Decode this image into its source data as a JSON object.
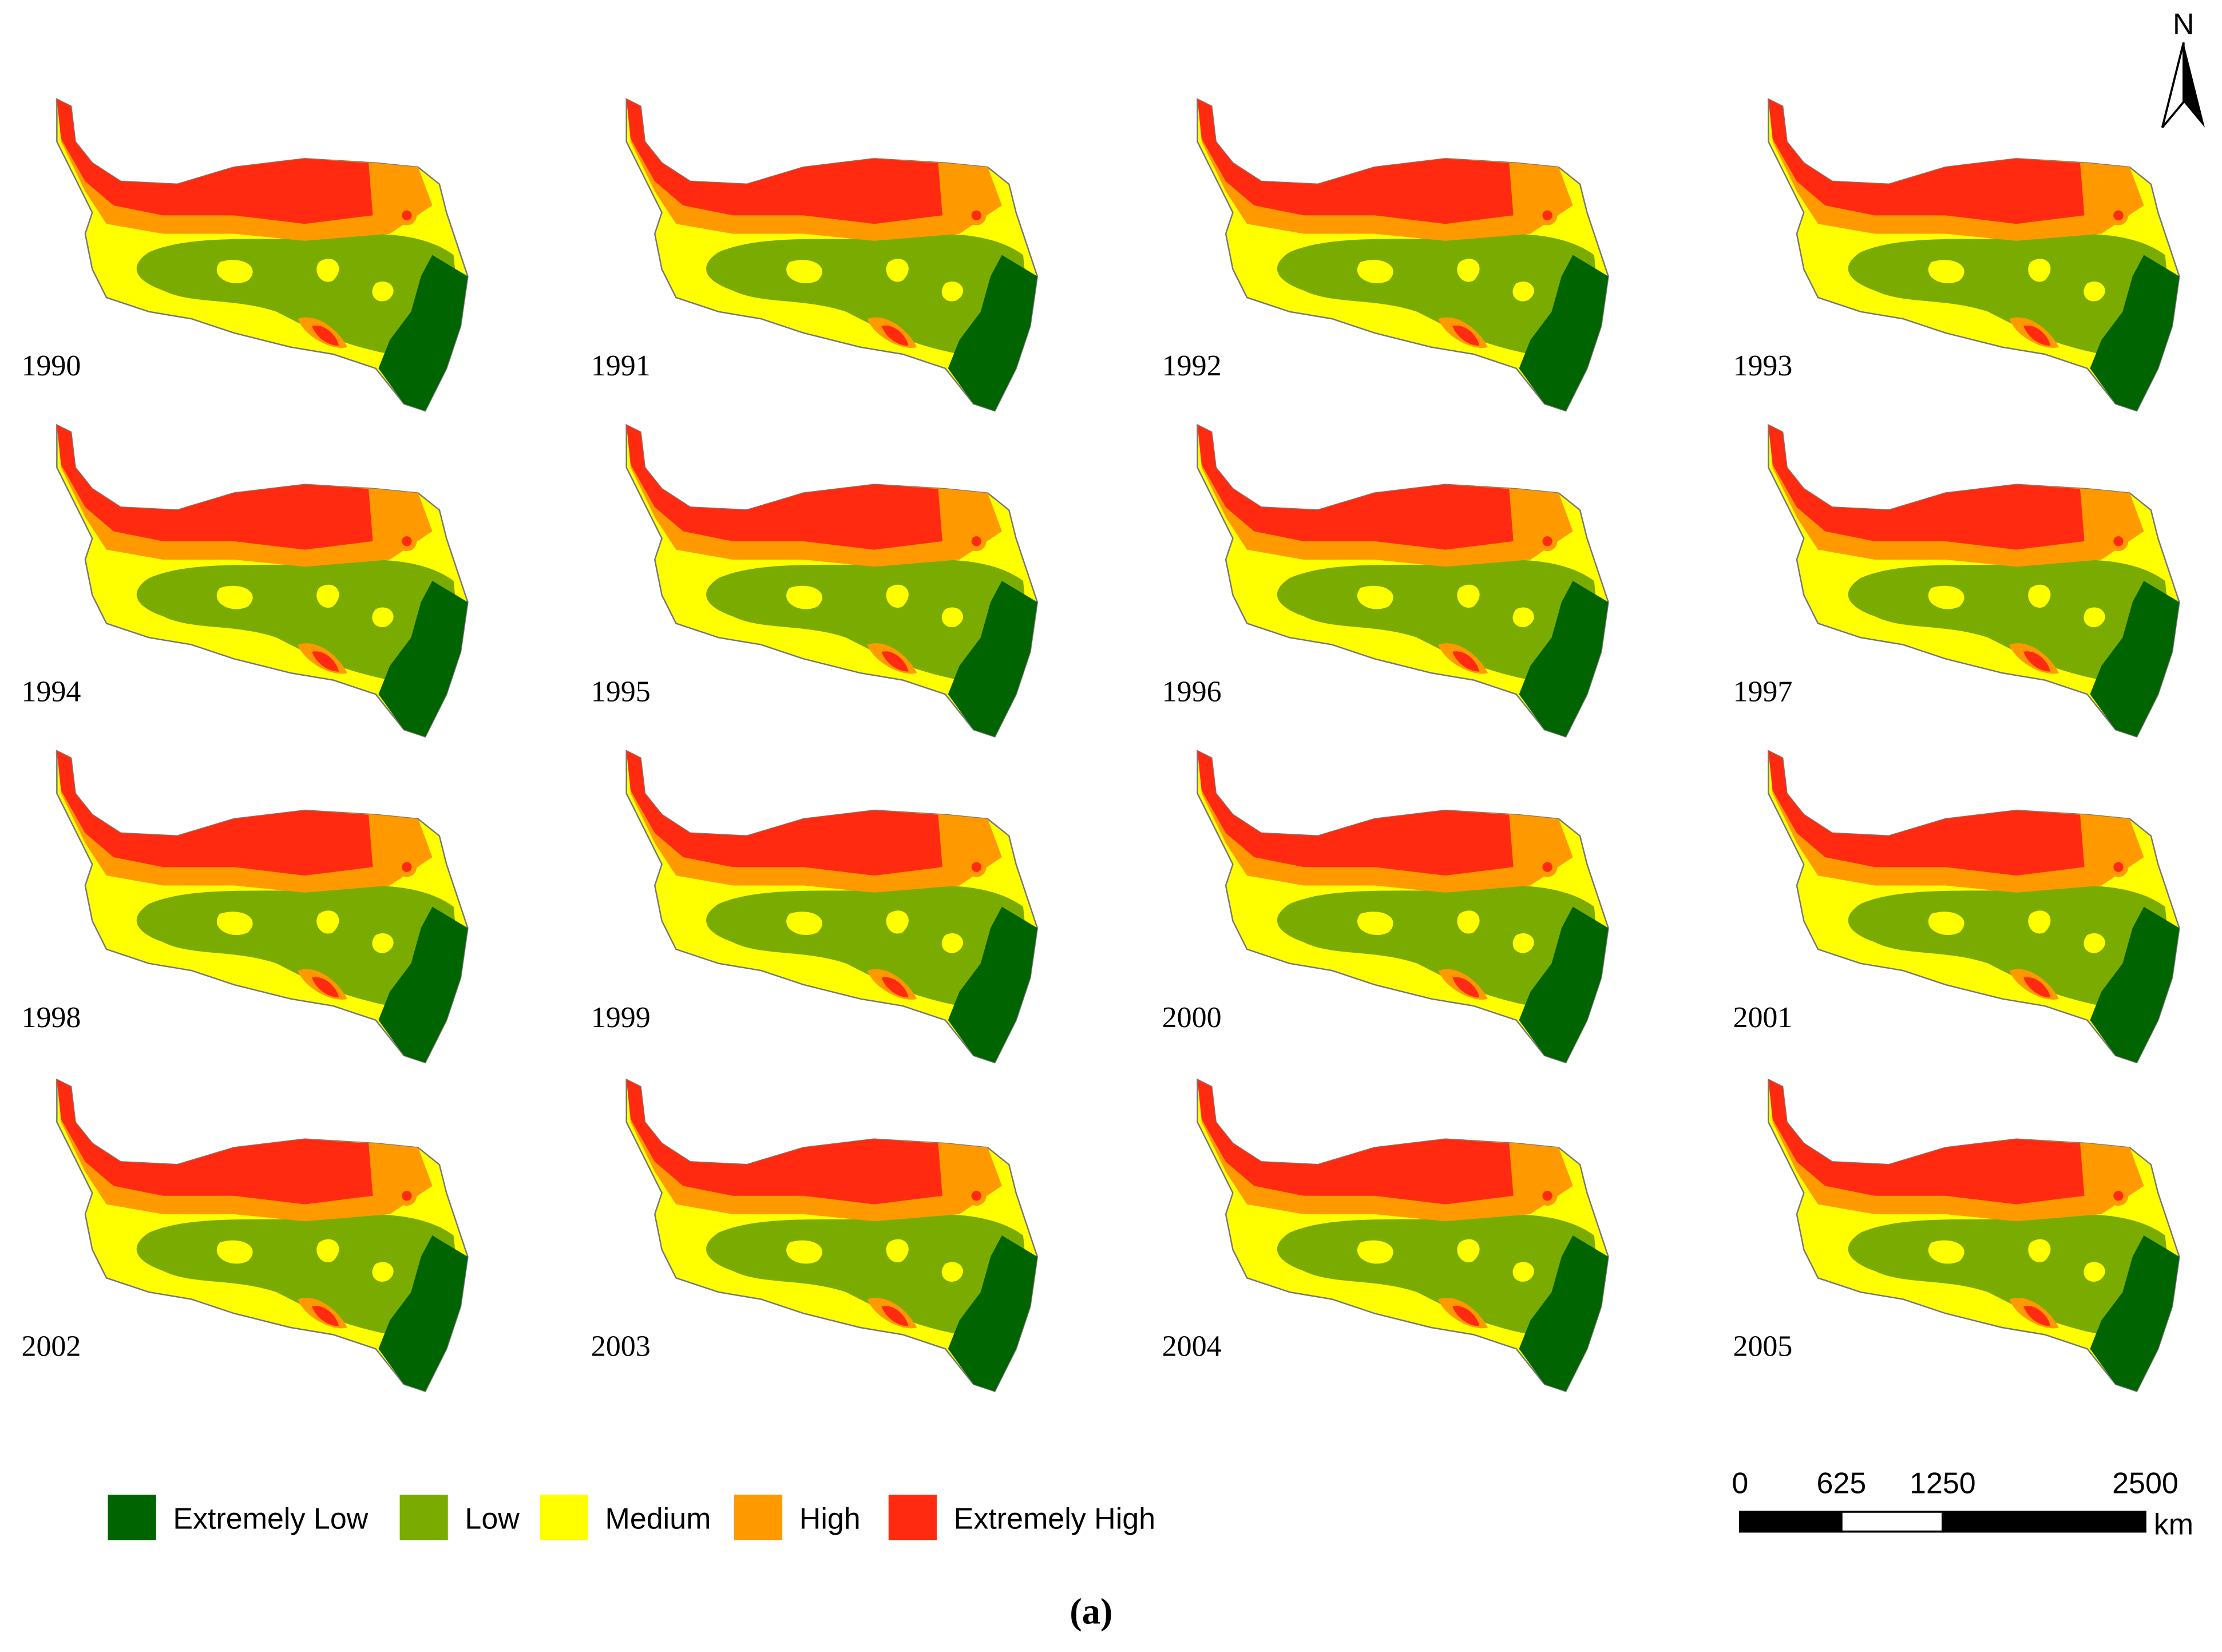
{
  "panels": [
    "1990",
    "1991",
    "1992",
    "1993",
    "1994",
    "1995",
    "1996",
    "1997",
    "1998",
    "1999",
    "2000",
    "2001",
    "2002",
    "2003",
    "2004",
    "2005"
  ],
  "legend": [
    {
      "label": "Extremely Low",
      "color": "#006400"
    },
    {
      "label": "Low",
      "color": "#7aab00"
    },
    {
      "label": "Medium",
      "color": "#ffff00"
    },
    {
      "label": "High",
      "color": "#ff9900"
    },
    {
      "label": "Extremely High",
      "color": "#ff2a10"
    }
  ],
  "north": "N",
  "scale_bar": {
    "ticks": [
      0,
      625,
      1250,
      2500
    ],
    "unit": "km"
  },
  "caption": "(a)"
}
